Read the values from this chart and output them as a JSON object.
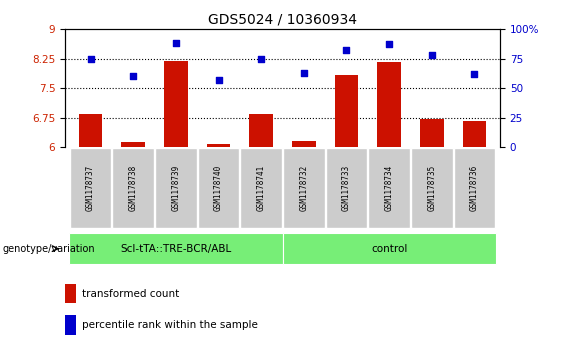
{
  "title": "GDS5024 / 10360934",
  "samples": [
    "GSM1178737",
    "GSM1178738",
    "GSM1178739",
    "GSM1178740",
    "GSM1178741",
    "GSM1178732",
    "GSM1178733",
    "GSM1178734",
    "GSM1178735",
    "GSM1178736"
  ],
  "bar_values": [
    6.85,
    6.12,
    8.18,
    6.08,
    6.85,
    6.15,
    7.82,
    8.15,
    6.7,
    6.65
  ],
  "scatter_values": [
    75,
    60,
    88,
    57,
    75,
    63,
    82,
    87,
    78,
    62
  ],
  "bar_color": "#cc1100",
  "scatter_color": "#0000cc",
  "ylim_left": [
    6,
    9
  ],
  "ylim_right": [
    0,
    100
  ],
  "yticks_left": [
    6,
    6.75,
    7.5,
    8.25,
    9
  ],
  "yticks_right": [
    0,
    25,
    50,
    75,
    100
  ],
  "ytick_labels_left": [
    "6",
    "6.75",
    "7.5",
    "8.25",
    "9"
  ],
  "ytick_labels_right": [
    "0",
    "25",
    "50",
    "75",
    "100%"
  ],
  "hlines": [
    6.75,
    7.5,
    8.25
  ],
  "group1_label": "ScI-tTA::TRE-BCR/ABL",
  "group2_label": "control",
  "group1_count": 5,
  "group2_count": 5,
  "group_color": "#77ee77",
  "sample_bg_color": "#cccccc",
  "xlabel_left": "genotype/variation",
  "legend_bar_label": "transformed count",
  "legend_scatter_label": "percentile rank within the sample",
  "bar_width": 0.55,
  "left_color": "#cc2200",
  "right_color": "#0000cc"
}
